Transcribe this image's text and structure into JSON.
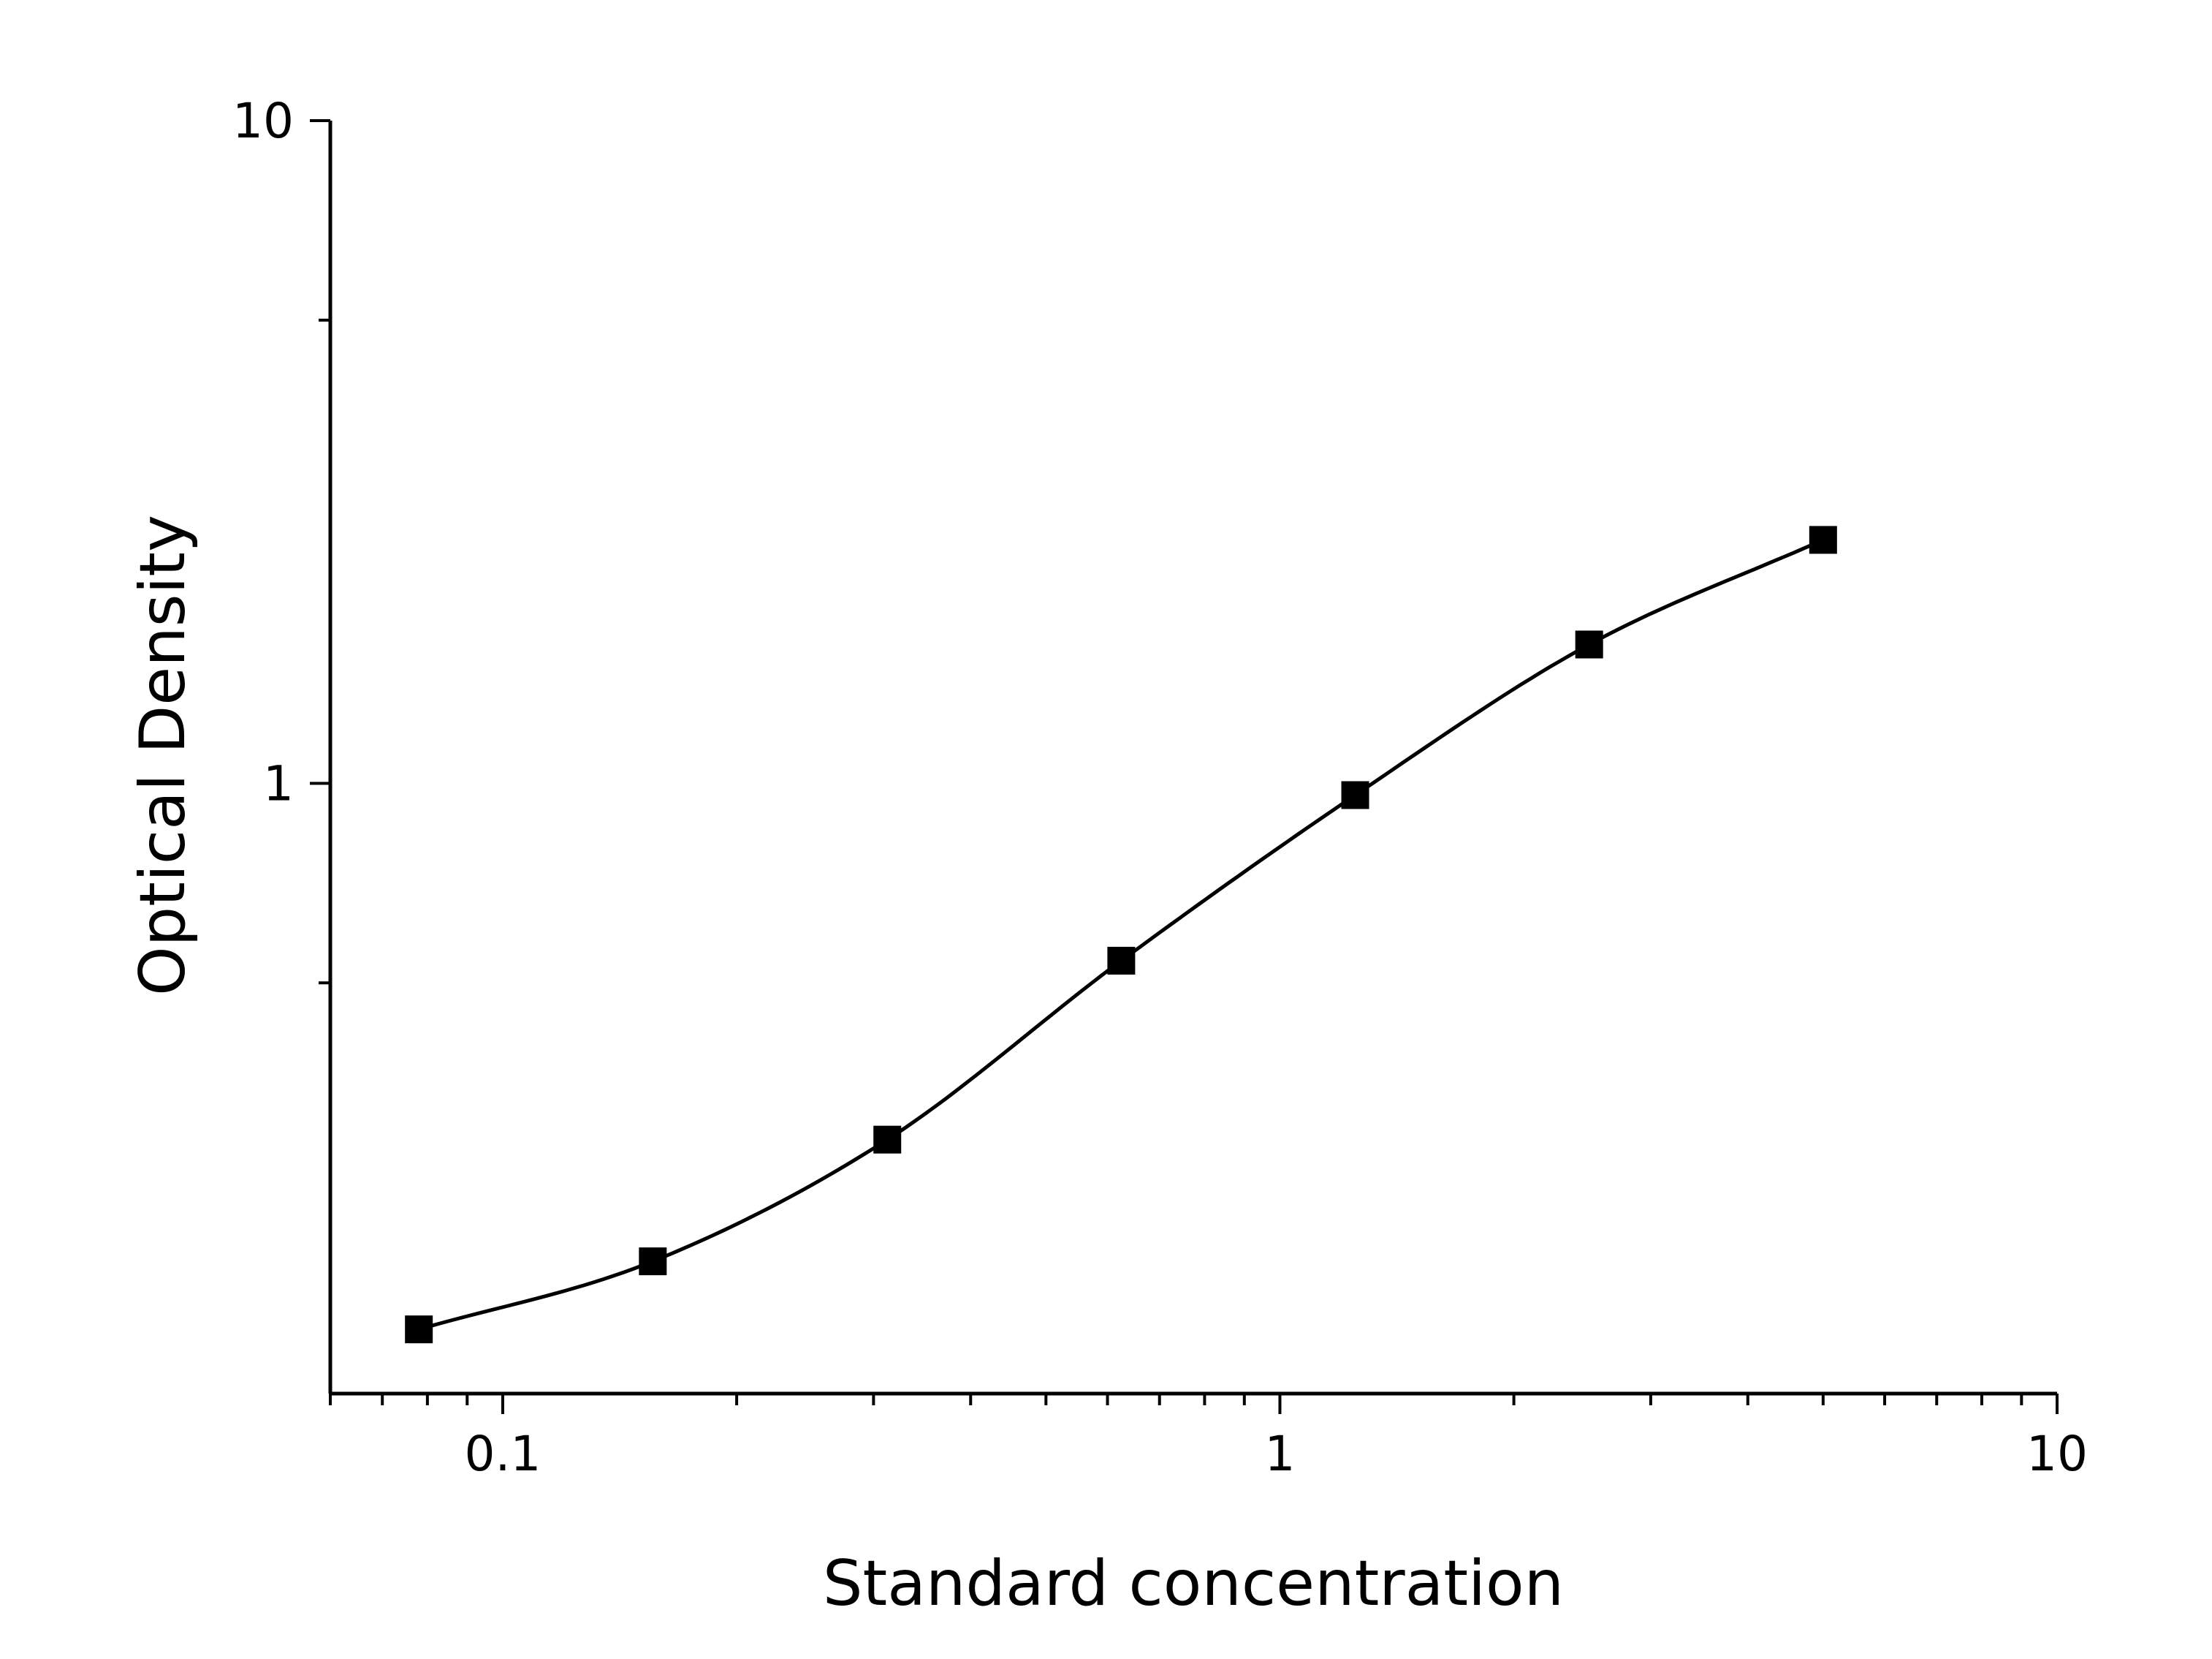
{
  "chart_data": {
    "type": "scatter",
    "xlabel": "Standard concentration",
    "ylabel": "Optical Density",
    "xscale": "log",
    "yscale": "log",
    "xlim": [
      0.06,
      10
    ],
    "ylim": [
      0.12,
      10
    ],
    "x_ticks": [
      {
        "value": 0.1,
        "label": "0.1"
      },
      {
        "value": 1,
        "label": "1"
      },
      {
        "value": 10,
        "label": "10"
      }
    ],
    "y_ticks": [
      {
        "value": 1,
        "label": "1"
      },
      {
        "value": 10,
        "label": "10"
      }
    ],
    "grid": false,
    "marker": "square",
    "fit_line": "smooth curve through points",
    "colors": {
      "points": "#000000",
      "line": "#000000"
    },
    "series": [
      {
        "x": [
          0.078,
          0.156,
          0.3125,
          0.625,
          1.25,
          2.5,
          5
        ],
        "y": [
          0.15,
          0.19,
          0.29,
          0.54,
          0.96,
          1.62,
          2.33
        ]
      }
    ]
  }
}
